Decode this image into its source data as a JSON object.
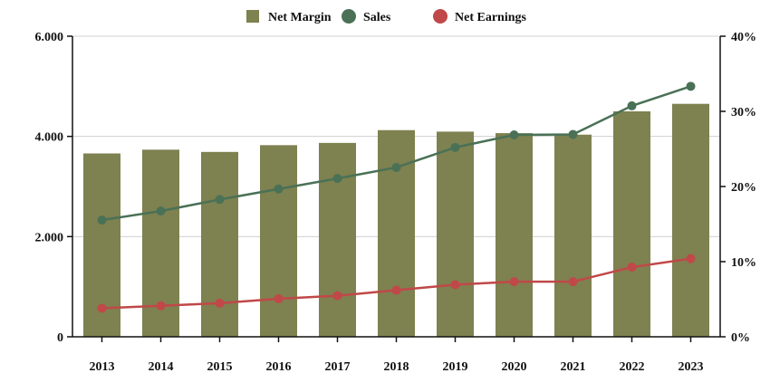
{
  "chart_data": {
    "type": "bar",
    "categories": [
      "2013",
      "2014",
      "2015",
      "2016",
      "2017",
      "2018",
      "2019",
      "2020",
      "2021",
      "2022",
      "2023"
    ],
    "series": [
      {
        "name": "Net Margin",
        "type": "bar",
        "axis": "right",
        "color": "#7e8150",
        "values": [
          24.4,
          24.9,
          24.6,
          25.5,
          25.8,
          27.5,
          27.3,
          27.1,
          26.9,
          30.0,
          31.0
        ]
      },
      {
        "name": "Sales",
        "type": "line",
        "axis": "left",
        "color": "#4a7156",
        "values": [
          2330,
          2510,
          2740,
          2950,
          3160,
          3380,
          3780,
          4030,
          4040,
          4610,
          5000
        ]
      },
      {
        "name": "Net Earnings",
        "type": "line",
        "axis": "left",
        "color": "#c04848",
        "values": [
          570,
          620,
          670,
          760,
          820,
          930,
          1040,
          1100,
          1100,
          1390,
          1560
        ]
      }
    ],
    "y_left": {
      "ylim": [
        0,
        6000
      ],
      "ticks": [
        0,
        2000,
        4000,
        6000
      ],
      "tick_labels": [
        "0",
        "2.000",
        "4.000",
        "6.000"
      ]
    },
    "y_right": {
      "ylim": [
        0,
        40
      ],
      "ticks": [
        0,
        10,
        20,
        30,
        40
      ],
      "tick_labels": [
        "0%",
        "10%",
        "20%",
        "30%",
        "40%"
      ]
    },
    "grid": true,
    "legend_position": "top-center"
  }
}
